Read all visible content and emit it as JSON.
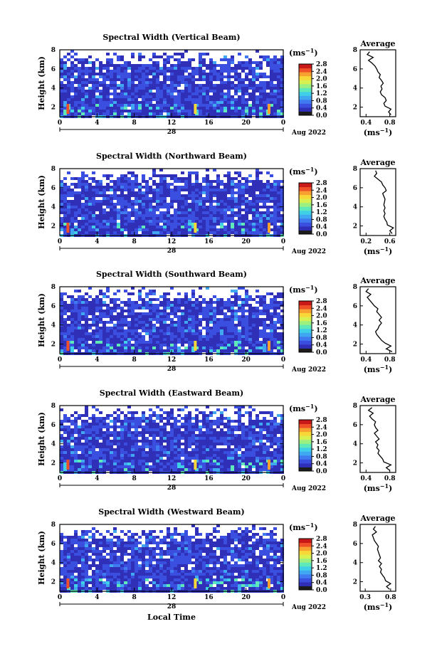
{
  "colors": {
    "colorbar": [
      "#1c1c1c",
      "#2f2fb8",
      "#3a4fe0",
      "#3f7af0",
      "#3fa8f0",
      "#3fd0e8",
      "#5fe8b8",
      "#9cf080",
      "#d8f050",
      "#f8d838",
      "#f8a030",
      "#f05028",
      "#c81818"
    ],
    "fallback_background": "#3048d8"
  },
  "chart_data": [
    {
      "type": "heatmap",
      "title": "Spectral Width (Vertical Beam)",
      "ylabel": "Height (km)",
      "yticks": [
        "2",
        "4",
        "6",
        "8"
      ],
      "ylim": [
        1,
        8
      ],
      "xticks": [
        "0",
        "4",
        "8",
        "12",
        "16",
        "20",
        "0"
      ],
      "xlim": [
        0,
        24
      ],
      "date_day": "28",
      "date_month": "Aug 2022",
      "colorbar": {
        "unit": "(ms",
        "unit_exp": "−1",
        "unit_close": ")",
        "labels": [
          "0.0",
          "0.4",
          "0.8",
          "1.2",
          "1.6",
          "2.0",
          "2.4",
          "2.8"
        ]
      },
      "profile": {
        "title": "Average",
        "xticks": [
          "0.4",
          "0.8"
        ],
        "xlim": [
          0.3,
          0.9
        ],
        "ylim": [
          1,
          8
        ],
        "xlabel": "(ms",
        "xlabel_exp": "−1",
        "xlabel_close": ")",
        "heights": [
          1.2,
          1.5,
          1.8,
          2.1,
          2.4,
          2.7,
          3.0,
          3.3,
          3.6,
          3.9,
          4.2,
          4.5,
          4.8,
          5.1,
          5.4,
          5.7,
          6.0,
          6.3,
          6.6,
          6.9,
          7.2,
          7.5,
          7.8
        ],
        "values": [
          0.82,
          0.78,
          0.82,
          0.72,
          0.7,
          0.74,
          0.72,
          0.66,
          0.64,
          0.67,
          0.65,
          0.69,
          0.66,
          0.62,
          0.64,
          0.6,
          0.58,
          0.55,
          0.5,
          0.44,
          0.52,
          0.42,
          0.46
        ]
      }
    },
    {
      "type": "heatmap",
      "title": "Spectral Width (Northward Beam)",
      "ylabel": "Height (km)",
      "yticks": [
        "2",
        "4",
        "6",
        "8"
      ],
      "ylim": [
        1,
        8
      ],
      "xticks": [
        "0",
        "4",
        "8",
        "12",
        "16",
        "20",
        "0"
      ],
      "xlim": [
        0,
        24
      ],
      "date_day": "28",
      "date_month": "Aug 2022",
      "colorbar": {
        "unit": "(ms",
        "unit_exp": "−1",
        "unit_close": ")",
        "labels": [
          "0.0",
          "0.4",
          "0.8",
          "1.2",
          "1.6",
          "2.0",
          "2.4",
          "2.8"
        ]
      },
      "profile": {
        "title": "Average",
        "xticks": [
          "0.2",
          "0.6"
        ],
        "xlim": [
          0.1,
          0.7
        ],
        "ylim": [
          1,
          8
        ],
        "xlabel": "(ms",
        "xlabel_exp": "−1",
        "xlabel_close": ")",
        "heights": [
          1.2,
          1.5,
          1.8,
          2.1,
          2.4,
          2.7,
          3.0,
          3.3,
          3.6,
          3.9,
          4.2,
          4.5,
          4.8,
          5.1,
          5.4,
          5.7,
          6.0,
          6.3,
          6.6,
          6.9,
          7.2,
          7.5,
          7.8
        ],
        "values": [
          0.64,
          0.6,
          0.66,
          0.56,
          0.55,
          0.52,
          0.5,
          0.52,
          0.5,
          0.52,
          0.5,
          0.51,
          0.52,
          0.5,
          0.48,
          0.54,
          0.52,
          0.48,
          0.46,
          0.4,
          0.34,
          0.38,
          0.36
        ]
      }
    },
    {
      "type": "heatmap",
      "title": "Spectral Width (Southward Beam)",
      "ylabel": "Height (km)",
      "yticks": [
        "2",
        "4",
        "6",
        "8"
      ],
      "ylim": [
        1,
        8
      ],
      "xticks": [
        "0",
        "4",
        "8",
        "12",
        "16",
        "20",
        "0"
      ],
      "xlim": [
        0,
        24
      ],
      "date_day": "28",
      "date_month": "Aug 2022",
      "colorbar": {
        "unit": "(ms",
        "unit_exp": "−1",
        "unit_close": ")",
        "labels": [
          "0.0",
          "0.4",
          "0.8",
          "1.2",
          "1.6",
          "2.0",
          "2.4",
          "2.8"
        ]
      },
      "profile": {
        "title": "Average",
        "xticks": [
          "0.4",
          "0.8"
        ],
        "xlim": [
          0.3,
          0.9
        ],
        "ylim": [
          1,
          8
        ],
        "xlabel": "(ms",
        "xlabel_exp": "−1",
        "xlabel_close": ")",
        "heights": [
          1.2,
          1.5,
          1.8,
          2.1,
          2.4,
          2.7,
          3.0,
          3.3,
          3.6,
          3.9,
          4.2,
          4.5,
          4.8,
          5.1,
          5.4,
          5.7,
          6.0,
          6.3,
          6.6,
          6.9,
          7.2,
          7.5,
          7.8
        ],
        "values": [
          0.84,
          0.74,
          0.82,
          0.72,
          0.66,
          0.62,
          0.58,
          0.56,
          0.6,
          0.62,
          0.66,
          0.62,
          0.66,
          0.62,
          0.58,
          0.6,
          0.54,
          0.5,
          0.46,
          0.42,
          0.48,
          0.4,
          0.44
        ]
      }
    },
    {
      "type": "heatmap",
      "title": "Spectral Width (Eastward Beam)",
      "ylabel": "Height (km)",
      "yticks": [
        "2",
        "4",
        "6",
        "8"
      ],
      "ylim": [
        1,
        8
      ],
      "xticks": [
        "0",
        "4",
        "8",
        "12",
        "16",
        "20",
        "0"
      ],
      "xlim": [
        0,
        24
      ],
      "date_day": "28",
      "date_month": "Aug 2022",
      "colorbar": {
        "unit": "(ms",
        "unit_exp": "−1",
        "unit_close": ")",
        "labels": [
          "0.0",
          "0.4",
          "0.8",
          "1.2",
          "1.6",
          "2.0",
          "2.4",
          "2.8"
        ]
      },
      "profile": {
        "title": "Average",
        "xticks": [
          "0.4",
          "0.8"
        ],
        "xlim": [
          0.3,
          0.9
        ],
        "ylim": [
          1,
          8
        ],
        "xlabel": "(ms",
        "xlabel_exp": "−1",
        "xlabel_close": ")",
        "heights": [
          1.2,
          1.5,
          1.8,
          2.1,
          2.4,
          2.7,
          3.0,
          3.3,
          3.6,
          3.9,
          4.2,
          4.5,
          4.8,
          5.1,
          5.4,
          5.7,
          6.0,
          6.3,
          6.6,
          6.9,
          7.2,
          7.5,
          7.8
        ],
        "values": [
          0.8,
          0.74,
          0.82,
          0.7,
          0.68,
          0.64,
          0.6,
          0.62,
          0.58,
          0.6,
          0.56,
          0.62,
          0.58,
          0.54,
          0.6,
          0.56,
          0.54,
          0.56,
          0.5,
          0.46,
          0.52,
          0.44,
          0.5
        ]
      }
    },
    {
      "type": "heatmap",
      "title": "Spectral Width (Westward Beam)",
      "ylabel": "Height (km)",
      "yticks": [
        "2",
        "4",
        "6",
        "8"
      ],
      "ylim": [
        1,
        8
      ],
      "xticks": [
        "0",
        "4",
        "8",
        "12",
        "16",
        "20",
        "0"
      ],
      "xlim": [
        0,
        24
      ],
      "date_day": "28",
      "date_month": "Aug 2022",
      "xlabel": "Local Time",
      "colorbar": {
        "unit": "(ms",
        "unit_exp": "−1",
        "unit_close": ")",
        "labels": [
          "0.0",
          "0.4",
          "0.8",
          "1.2",
          "1.6",
          "2.0",
          "2.4",
          "2.8"
        ]
      },
      "profile": {
        "title": "Average",
        "xticks": [
          "0.3",
          "0.8"
        ],
        "xlim": [
          0.2,
          0.9
        ],
        "ylim": [
          1,
          8
        ],
        "xlabel": "(ms",
        "xlabel_exp": "−1",
        "xlabel_close": ")",
        "heights": [
          1.2,
          1.5,
          1.8,
          2.1,
          2.4,
          2.7,
          3.0,
          3.3,
          3.6,
          3.9,
          4.2,
          4.5,
          4.8,
          5.1,
          5.4,
          5.7,
          6.0,
          6.3,
          6.6,
          6.9,
          7.2,
          7.5,
          7.8
        ],
        "values": [
          0.78,
          0.72,
          0.8,
          0.7,
          0.68,
          0.64,
          0.6,
          0.62,
          0.58,
          0.62,
          0.56,
          0.6,
          0.58,
          0.56,
          0.54,
          0.56,
          0.52,
          0.48,
          0.46,
          0.44,
          0.52,
          0.46,
          0.5
        ]
      }
    }
  ]
}
